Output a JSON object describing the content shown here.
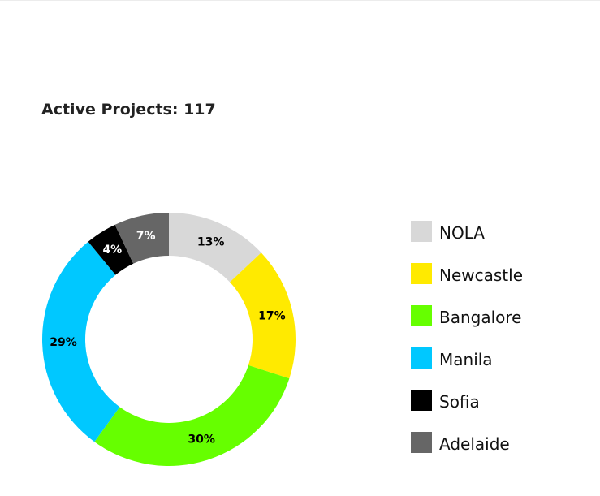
{
  "chart_data": {
    "type": "pie",
    "variant": "donut",
    "title": "Active Projects: 117",
    "legend_position": "right",
    "categories": [
      "NOLA",
      "Newcastle",
      "Bangalore",
      "Manila",
      "Sofia",
      "Adelaide"
    ],
    "values": [
      13,
      17,
      30,
      29,
      4,
      7
    ],
    "labels": [
      "13%",
      "17%",
      "30%",
      "29%",
      "4%",
      "7%"
    ],
    "colors": [
      "#d8d8d8",
      "#ffea00",
      "#66ff00",
      "#00c8ff",
      "#000000",
      "#666666"
    ],
    "label_colors": [
      "#000000",
      "#000000",
      "#000000",
      "#000000",
      "#ffffff",
      "#ffffff"
    ]
  }
}
